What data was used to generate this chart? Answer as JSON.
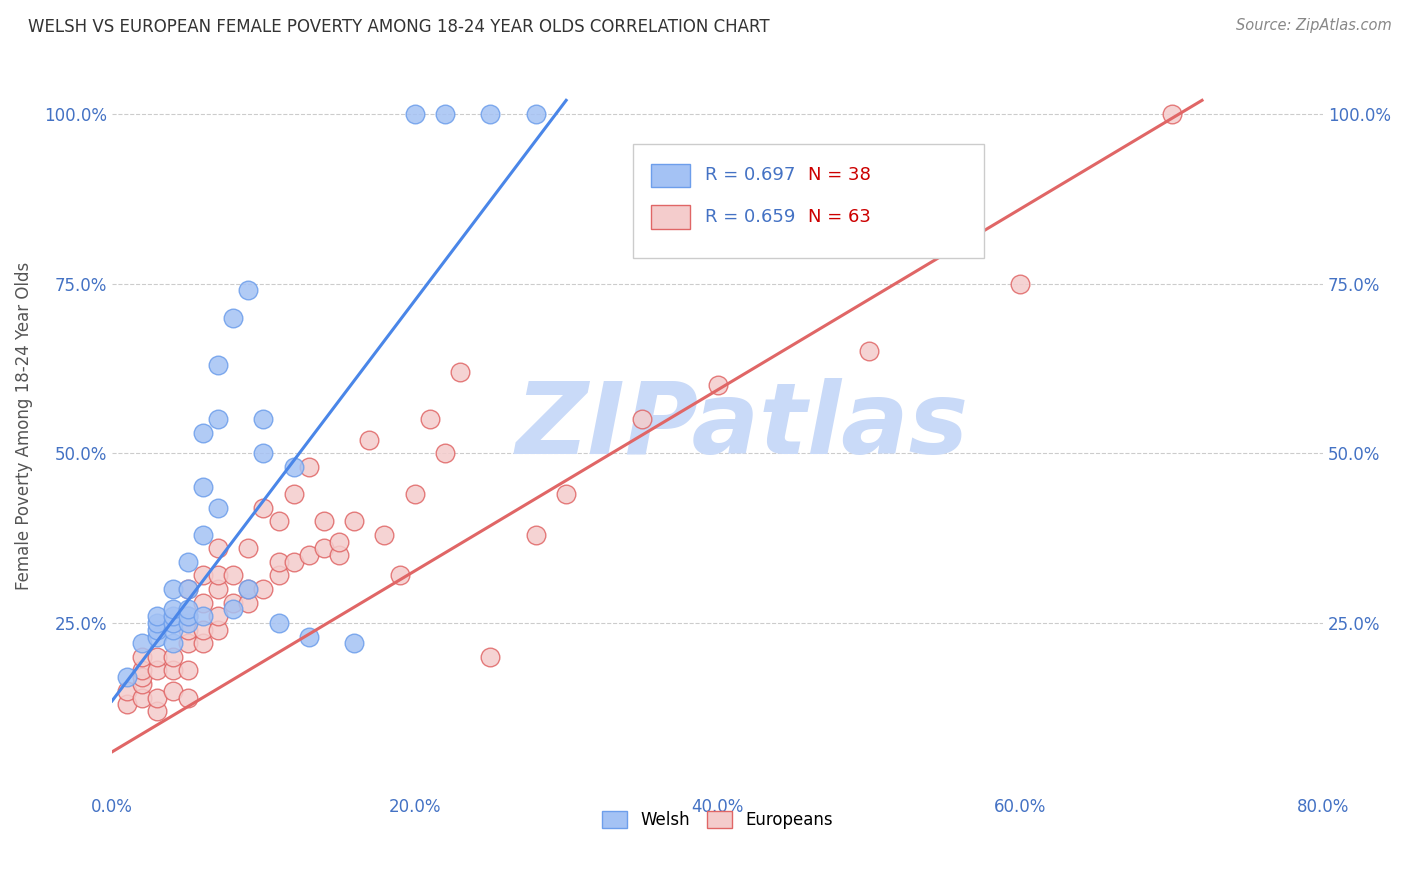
{
  "title": "WELSH VS EUROPEAN FEMALE POVERTY AMONG 18-24 YEAR OLDS CORRELATION CHART",
  "source": "Source: ZipAtlas.com",
  "ylabel": "Female Poverty Among 18-24 Year Olds",
  "xlim": [
    0.0,
    0.8
  ],
  "ylim": [
    0.0,
    1.08
  ],
  "xtick_labels": [
    "0.0%",
    "20.0%",
    "40.0%",
    "60.0%",
    "80.0%"
  ],
  "xtick_vals": [
    0.0,
    0.2,
    0.4,
    0.6,
    0.8
  ],
  "ytick_labels": [
    "25.0%",
    "50.0%",
    "75.0%",
    "100.0%"
  ],
  "ytick_vals": [
    0.25,
    0.5,
    0.75,
    1.0
  ],
  "welsh_color": "#a4c2f4",
  "european_color": "#f4cccc",
  "welsh_edge_color": "#6d9eeb",
  "european_edge_color": "#e06666",
  "welsh_line_color": "#4a86e8",
  "european_line_color": "#e06666",
  "welsh_R": 0.697,
  "welsh_N": 38,
  "european_R": 0.659,
  "european_N": 63,
  "legend_color": "#4472c4",
  "legend_N_color": "#cc0000",
  "watermark": "ZIPatlas",
  "watermark_color": "#c9daf8",
  "welsh_scatter_x": [
    0.01,
    0.02,
    0.03,
    0.03,
    0.03,
    0.03,
    0.04,
    0.04,
    0.04,
    0.04,
    0.04,
    0.04,
    0.05,
    0.05,
    0.05,
    0.05,
    0.05,
    0.06,
    0.06,
    0.06,
    0.06,
    0.07,
    0.07,
    0.07,
    0.08,
    0.08,
    0.09,
    0.09,
    0.1,
    0.1,
    0.11,
    0.12,
    0.13,
    0.16,
    0.2,
    0.22,
    0.25,
    0.28
  ],
  "welsh_scatter_y": [
    0.17,
    0.22,
    0.23,
    0.24,
    0.25,
    0.26,
    0.22,
    0.24,
    0.25,
    0.26,
    0.27,
    0.3,
    0.25,
    0.26,
    0.27,
    0.3,
    0.34,
    0.26,
    0.38,
    0.45,
    0.53,
    0.42,
    0.55,
    0.63,
    0.27,
    0.7,
    0.3,
    0.74,
    0.5,
    0.55,
    0.25,
    0.48,
    0.23,
    0.22,
    1.0,
    1.0,
    1.0,
    1.0
  ],
  "european_scatter_x": [
    0.01,
    0.01,
    0.02,
    0.02,
    0.02,
    0.02,
    0.02,
    0.03,
    0.03,
    0.03,
    0.03,
    0.04,
    0.04,
    0.04,
    0.05,
    0.05,
    0.05,
    0.05,
    0.05,
    0.05,
    0.06,
    0.06,
    0.06,
    0.06,
    0.07,
    0.07,
    0.07,
    0.07,
    0.07,
    0.08,
    0.08,
    0.09,
    0.09,
    0.09,
    0.1,
    0.1,
    0.11,
    0.11,
    0.11,
    0.12,
    0.12,
    0.13,
    0.13,
    0.14,
    0.14,
    0.15,
    0.15,
    0.16,
    0.17,
    0.18,
    0.19,
    0.2,
    0.21,
    0.22,
    0.23,
    0.25,
    0.28,
    0.3,
    0.35,
    0.4,
    0.5,
    0.6,
    0.7
  ],
  "european_scatter_y": [
    0.13,
    0.15,
    0.14,
    0.16,
    0.17,
    0.18,
    0.2,
    0.12,
    0.14,
    0.18,
    0.2,
    0.15,
    0.18,
    0.2,
    0.14,
    0.18,
    0.22,
    0.24,
    0.26,
    0.3,
    0.22,
    0.24,
    0.28,
    0.32,
    0.24,
    0.26,
    0.3,
    0.32,
    0.36,
    0.28,
    0.32,
    0.28,
    0.3,
    0.36,
    0.3,
    0.42,
    0.32,
    0.34,
    0.4,
    0.34,
    0.44,
    0.35,
    0.48,
    0.36,
    0.4,
    0.35,
    0.37,
    0.4,
    0.52,
    0.38,
    0.32,
    0.44,
    0.55,
    0.5,
    0.62,
    0.2,
    0.38,
    0.44,
    0.55,
    0.6,
    0.65,
    0.75,
    1.0
  ],
  "welsh_line_x": [
    0.0,
    0.3
  ],
  "welsh_line_y": [
    0.135,
    1.02
  ],
  "european_line_x": [
    0.0,
    0.72
  ],
  "european_line_y": [
    0.06,
    1.02
  ]
}
